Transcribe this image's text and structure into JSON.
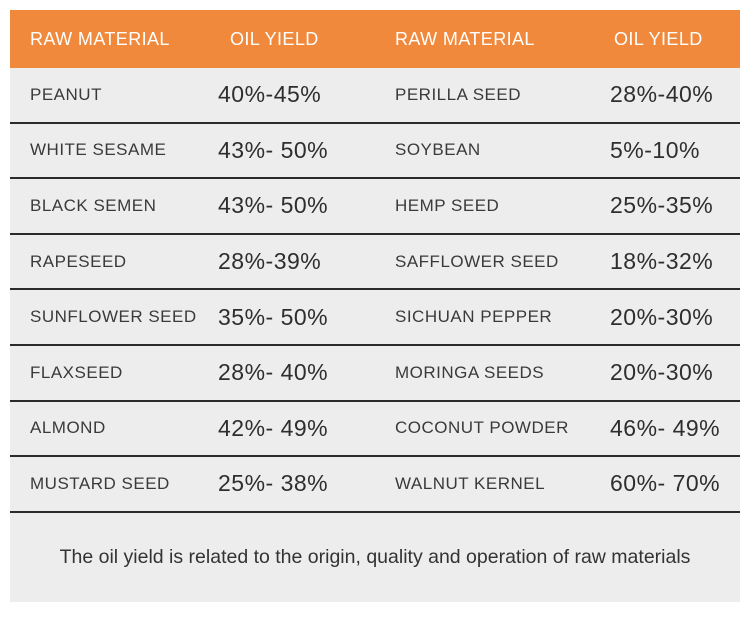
{
  "colors": {
    "header_bg": "#F1893C",
    "header_text": "#FFFFFF",
    "row_bg": "#EDEDED",
    "divider": "#2B2B2B",
    "material_text": "#3A3A3A",
    "yield_text": "#2E2E2E",
    "page_bg": "#FFFFFF"
  },
  "chart_data": {
    "type": "table",
    "columns": [
      "RAW MATERIAL",
      "OIL YIELD",
      "RAW MATERIAL",
      "OIL YIELD"
    ],
    "rows": [
      [
        "PEANUT",
        "40%-45%",
        "PERILLA SEED",
        "28%-40%"
      ],
      [
        "WHITE SESAME",
        "43%- 50%",
        "SOYBEAN",
        "5%-10%"
      ],
      [
        "BLACK SEMEN",
        "43%- 50%",
        "HEMP SEED",
        "25%-35%"
      ],
      [
        "RAPESEED",
        "28%-39%",
        "SAFFLOWER SEED",
        "18%-32%"
      ],
      [
        "SUNFLOWER SEED",
        "35%- 50%",
        "SICHUAN PEPPER",
        "20%-30%"
      ],
      [
        "FLAXSEED",
        "28%- 40%",
        "MORINGA SEEDS",
        "20%-30%"
      ],
      [
        "ALMOND",
        "42%- 49%",
        "COCONUT POWDER",
        "46%- 49%"
      ],
      [
        "MUSTARD SEED",
        "25%- 38%",
        "WALNUT KERNEL",
        "60%- 70%"
      ]
    ],
    "note": "The oil yield is related to the origin, quality and operation of raw materials"
  },
  "footer": {
    "note": "The oil yield is related to the origin, quality and operation of raw materials"
  }
}
